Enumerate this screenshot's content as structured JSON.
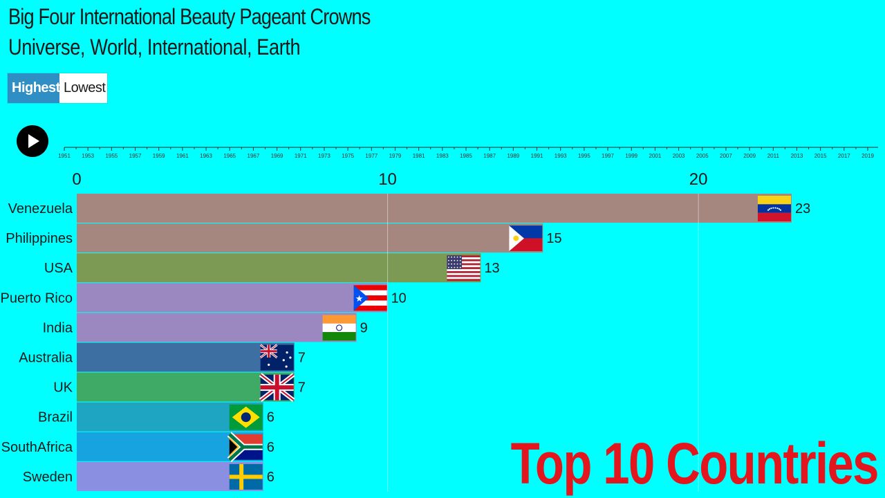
{
  "header": {
    "title": "Big Four International Beauty Pageant Crowns",
    "subtitle": "Universe, World, International, Earth"
  },
  "sort_toggle": {
    "highest_label": "Highest",
    "lowest_label": "Lowest",
    "selected": "Highest"
  },
  "player": {
    "play_icon": "play-icon"
  },
  "timeline": {
    "years": [
      "1951",
      "1953",
      "1955",
      "1957",
      "1959",
      "1961",
      "1963",
      "1965",
      "1967",
      "1969",
      "1971",
      "1973",
      "1975",
      "1977",
      "1979",
      "1981",
      "1983",
      "1985",
      "1987",
      "1989",
      "1991",
      "1993",
      "1995",
      "1997",
      "1999",
      "2001",
      "2003",
      "2005",
      "2007",
      "2009",
      "2011",
      "2013",
      "2015",
      "2017",
      "2019"
    ]
  },
  "watermark": "Top 10 Countries",
  "chart_data": {
    "type": "bar",
    "orientation": "horizontal",
    "title": "Big Four International Beauty Pageant Crowns",
    "subtitle": "Universe, World, International, Earth",
    "categories": [
      "Venezuela",
      "Philippines",
      "USA",
      "Puerto Rico",
      "India",
      "Australia",
      "UK",
      "Brazil",
      "SouthAfrica",
      "Sweden"
    ],
    "values": [
      23,
      15,
      13,
      10,
      9,
      7,
      7,
      6,
      6,
      6
    ],
    "colors": [
      "#a5877f",
      "#a5877f",
      "#7c9a54",
      "#9b88c1",
      "#9b88c1",
      "#3d6fa3",
      "#3faa65",
      "#1da5c2",
      "#17a3e0",
      "#8b8fe1"
    ],
    "xlim": [
      0,
      23.2
    ],
    "xticks": [
      0,
      10,
      20
    ],
    "grid": true
  }
}
